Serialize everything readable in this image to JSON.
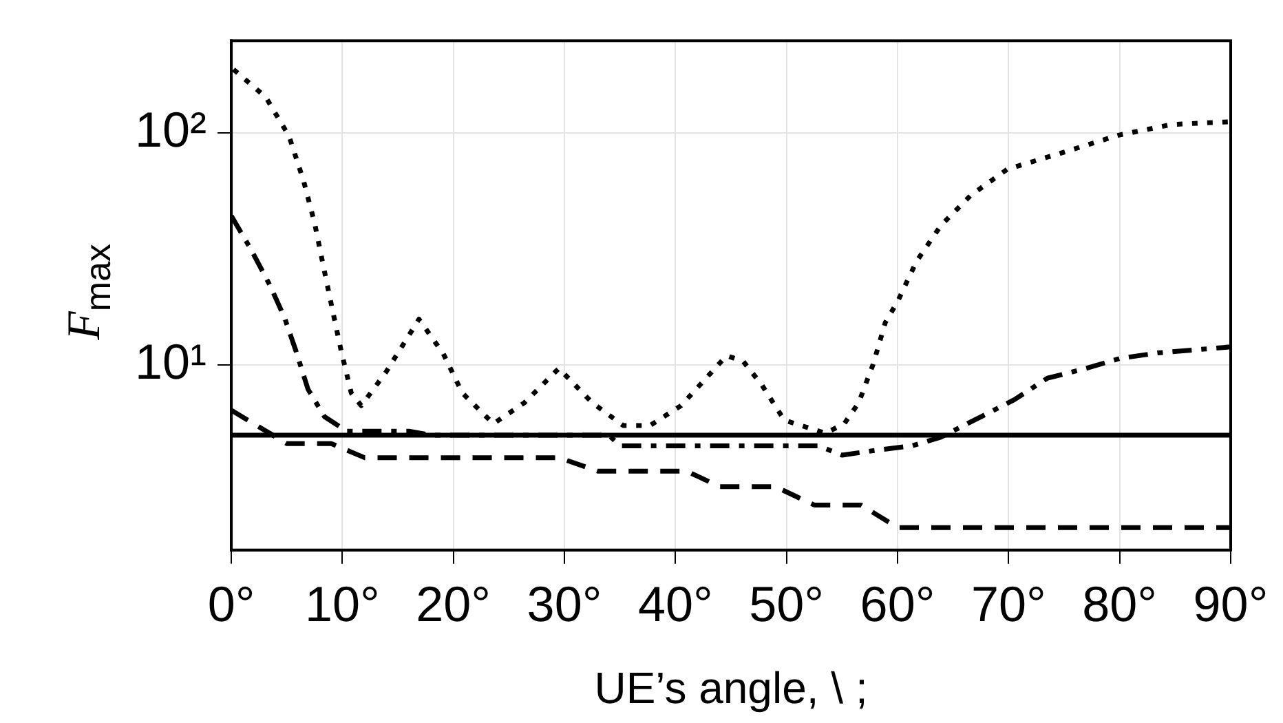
{
  "chart_data": {
    "type": "line",
    "xlabel": "UE’s angle, \\ ;",
    "ylabel": "F$_{max}$",
    "xlim": [
      0,
      90
    ],
    "xticks": [
      {
        "value": 0,
        "label": "0°"
      },
      {
        "value": 10,
        "label": "10°"
      },
      {
        "value": 20,
        "label": "20°"
      },
      {
        "value": 30,
        "label": "30°"
      },
      {
        "value": 40,
        "label": "40°"
      },
      {
        "value": 50,
        "label": "50°"
      },
      {
        "value": 60,
        "label": "60°"
      },
      {
        "value": 70,
        "label": "70°"
      },
      {
        "value": 80,
        "label": "80°"
      },
      {
        "value": 90,
        "label": "90°"
      }
    ],
    "ylim": [
      1.6,
      250
    ],
    "yticks": [
      {
        "value": 10,
        "label": "10¹"
      },
      {
        "value": 100,
        "label": "10²"
      }
    ],
    "log": "y",
    "grid": true,
    "legend": false,
    "marker": "none",
    "series": [
      {
        "color": "#000000",
        "line_style": "solid",
        "x": [
          0,
          90
        ],
        "values": [
          5,
          5
        ]
      },
      {
        "color": "#000000",
        "line_style": "dashed",
        "x": [
          0,
          5,
          9,
          12,
          29.5,
          33,
          41,
          44,
          49,
          52.5,
          56.7,
          60,
          90
        ],
        "values": [
          6.4,
          4.6,
          4.6,
          4.0,
          4.0,
          3.5,
          3.5,
          3.0,
          3.0,
          2.5,
          2.5,
          2.0,
          2.0
        ]
      },
      {
        "color": "#000000",
        "line_style": "dashdot",
        "x": [
          0,
          1.7,
          3.5,
          4.8,
          5.8,
          6.9,
          8.4,
          10.4,
          16,
          18,
          34,
          35,
          52.9,
          55,
          58,
          61.3,
          63.9,
          70.5,
          73.5,
          77,
          80,
          83.4,
          90
        ],
        "values": [
          44,
          32,
          22,
          16,
          11.6,
          7.9,
          6.0,
          5.2,
          5.2,
          5.0,
          5.0,
          4.5,
          4.5,
          4.1,
          4.3,
          4.5,
          4.9,
          7.1,
          8.8,
          9.7,
          10.7,
          11.3,
          12.0
        ]
      },
      {
        "color": "#000000",
        "line_style": "dotted",
        "x": [
          0.2,
          3.1,
          5.2,
          6.5,
          7.5,
          8.3,
          9.1,
          9.9,
          10.8,
          11.7,
          13.9,
          16.9,
          19.1,
          20.8,
          23.6,
          26.4,
          29.5,
          32.5,
          35.3,
          37.7,
          40.5,
          44.6,
          46.1,
          47.8,
          49.8,
          53.5,
          55.2,
          56.5,
          57.8,
          58.9,
          60,
          61.7,
          63.9,
          66.6,
          69.9,
          74.7,
          79.9,
          84.7,
          90
        ],
        "values": [
          188,
          143,
          97,
          62.5,
          41,
          26.6,
          17.4,
          11.5,
          7.6,
          6.7,
          9.3,
          15.8,
          11.2,
          7.6,
          5.6,
          6.9,
          9.7,
          6.9,
          5.5,
          5.5,
          6.7,
          11,
          10.4,
          8.2,
          5.8,
          5.1,
          5.6,
          6.9,
          10.1,
          15.3,
          18.8,
          28,
          40,
          54,
          70,
          82,
          98,
          109,
          112
        ]
      }
    ]
  }
}
